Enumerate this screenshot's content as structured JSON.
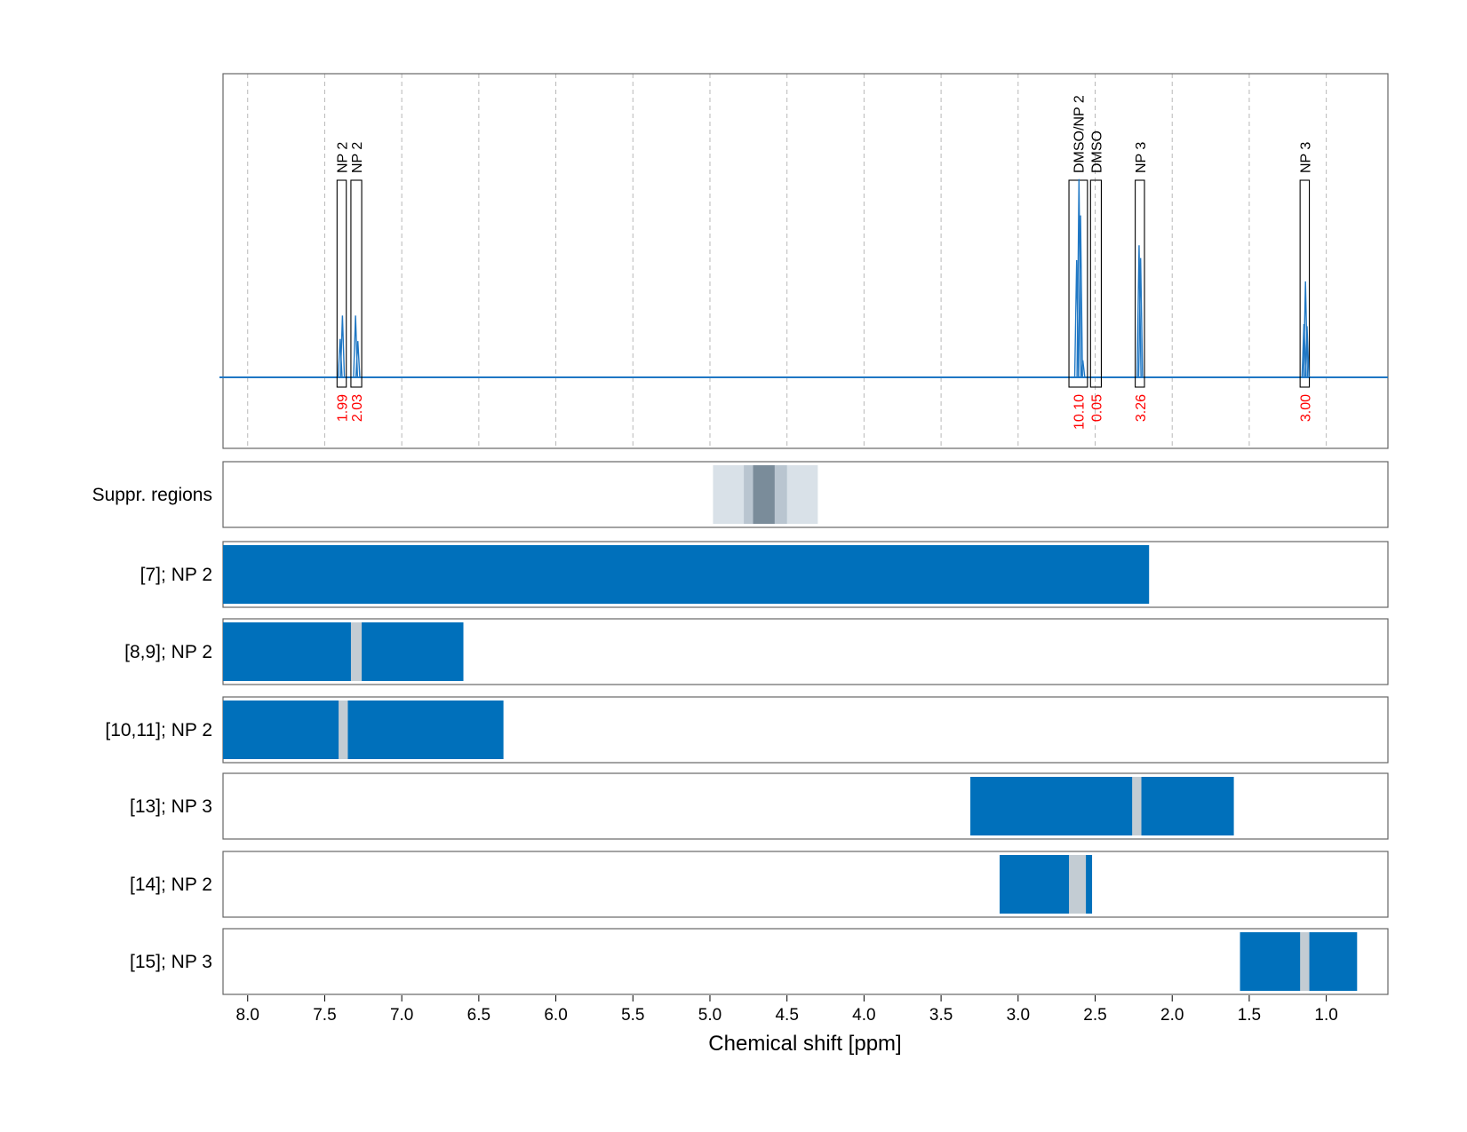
{
  "chart_data": {
    "type": "nmr-spectrum-with-region-tracks",
    "xlabel": "Chemical shift [ppm]",
    "xlim": [
      8.16,
      0.6
    ],
    "x_ticks": [
      "8.0",
      "7.5",
      "7.0",
      "6.5",
      "6.0",
      "5.5",
      "5.0",
      "4.5",
      "4.0",
      "3.5",
      "3.0",
      "2.5",
      "2.0",
      "1.5",
      "1.0"
    ],
    "x_tick_values": [
      8.0,
      7.5,
      7.0,
      6.5,
      6.0,
      5.5,
      5.0,
      4.5,
      4.0,
      3.5,
      3.0,
      2.5,
      2.0,
      1.5,
      1.0
    ],
    "grid": "vertical dashed",
    "spectrum": {
      "color": "#1f77c4",
      "baseline_ppm_range": [
        8.16,
        0.6
      ],
      "peaks": [
        {
          "ppm": 7.4,
          "height": 0.18
        },
        {
          "ppm": 7.385,
          "height": 0.29
        },
        {
          "ppm": 7.3,
          "height": 0.29
        },
        {
          "ppm": 7.285,
          "height": 0.17
        },
        {
          "ppm": 2.62,
          "height": 0.55
        },
        {
          "ppm": 2.605,
          "height": 0.93
        },
        {
          "ppm": 2.595,
          "height": 0.76
        },
        {
          "ppm": 2.58,
          "height": 0.08
        },
        {
          "ppm": 2.215,
          "height": 0.62
        },
        {
          "ppm": 2.205,
          "height": 0.56
        },
        {
          "ppm": 1.145,
          "height": 0.25
        },
        {
          "ppm": 1.135,
          "height": 0.45
        },
        {
          "ppm": 1.125,
          "height": 0.24
        }
      ]
    },
    "annotations": [
      {
        "label": "NP 2",
        "range": [
          7.42,
          7.36
        ],
        "integral": "1.99"
      },
      {
        "label": "NP 2",
        "range": [
          7.33,
          7.26
        ],
        "integral": "2.03"
      },
      {
        "label": "DMSO/NP 2",
        "range": [
          2.67,
          2.55
        ],
        "integral": "10.10"
      },
      {
        "label": "DMSO",
        "range": [
          2.53,
          2.46
        ],
        "integral": "0.05"
      },
      {
        "label": "NP 3",
        "range": [
          2.24,
          2.18
        ],
        "integral": "3.26"
      },
      {
        "label": "NP 3",
        "range": [
          1.17,
          1.11
        ],
        "integral": "3.00"
      }
    ],
    "suppression_track": {
      "label": "Suppr. regions",
      "regions": [
        {
          "range": [
            4.98,
            4.3
          ],
          "color": "#d9e1e8"
        },
        {
          "range": [
            4.78,
            4.5
          ],
          "color": "#b9c5d0"
        },
        {
          "range": [
            4.72,
            4.58
          ],
          "color": "#7a8c9a"
        }
      ]
    },
    "region_tracks": [
      {
        "label": "[7]; NP 2",
        "fill": [
          8.16,
          2.15
        ],
        "gaps": []
      },
      {
        "label": "[8,9]; NP 2",
        "fill": [
          8.16,
          6.6
        ],
        "gaps": [
          [
            7.33,
            7.26
          ]
        ]
      },
      {
        "label": "[10,11]; NP 2",
        "fill": [
          8.16,
          6.34
        ],
        "gaps": [
          [
            7.41,
            7.35
          ]
        ]
      },
      {
        "label": "[13]; NP 3",
        "fill": [
          3.31,
          1.6
        ],
        "gaps": [
          [
            2.26,
            2.2
          ]
        ]
      },
      {
        "label": "[14]; NP 2",
        "fill": [
          3.12,
          2.52
        ],
        "gaps": [
          [
            2.67,
            2.56
          ]
        ]
      },
      {
        "label": "[15]; NP 3",
        "fill": [
          1.56,
          0.8
        ],
        "gaps": [
          [
            1.17,
            1.11
          ]
        ]
      }
    ],
    "fill_color": "#0070bb",
    "gap_color": "#c3ccd3"
  }
}
